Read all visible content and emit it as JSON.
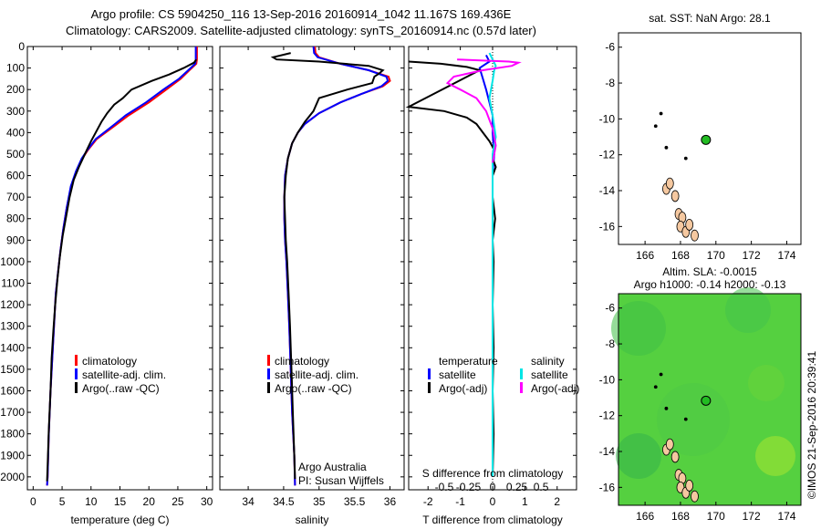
{
  "header": {
    "title_line1": "Argo profile: CS 5904250_116 13-Sep-2016 20160914_1042 11.167S 169.436E",
    "title_line2": "Climatology: CARS2009. Satellite-adjusted climatology: synTS_20160914.nc (0.57d later)"
  },
  "side_stamp": "©IMOS 21-Sep-2016 20:39:41",
  "colors": {
    "climatology": "#ff0000",
    "satellite": "#0000ff",
    "argo": "#000000",
    "sal_satellite": "#00e5e5",
    "sal_argo": "#ff00ff",
    "land_fill": "#f5c8a0",
    "sla_field": "#55d040",
    "marker": "#22bb22"
  },
  "chart_data": [
    {
      "type": "line",
      "id": "temperature",
      "xlabel": "temperature (deg C)",
      "xlim": [
        -1,
        31
      ],
      "xticks": [
        0,
        5,
        10,
        15,
        20,
        25,
        30
      ],
      "ylim": [
        0,
        2060
      ],
      "yticks": [
        0,
        100,
        200,
        300,
        400,
        500,
        600,
        700,
        800,
        900,
        1000,
        1100,
        1200,
        1300,
        1400,
        1500,
        1600,
        1700,
        1800,
        1900,
        2000
      ],
      "legend": [
        "climatology",
        "satellite-adj. clim.",
        "Argo(..raw -QC)"
      ],
      "series": [
        {
          "name": "climatology",
          "points": [
            [
              28.3,
              0
            ],
            [
              28.3,
              60
            ],
            [
              28.2,
              80
            ],
            [
              27.0,
              110
            ],
            [
              25.5,
              150
            ],
            [
              23.0,
              200
            ],
            [
              20.0,
              260
            ],
            [
              16.5,
              320
            ],
            [
              13.5,
              380
            ],
            [
              11.0,
              430
            ],
            [
              9.5,
              480
            ],
            [
              8.5,
              520
            ],
            [
              7.5,
              580
            ],
            [
              6.6,
              650
            ],
            [
              5.8,
              750
            ],
            [
              5.2,
              850
            ],
            [
              4.7,
              950
            ],
            [
              4.3,
              1050
            ],
            [
              3.9,
              1150
            ],
            [
              3.6,
              1300
            ],
            [
              3.3,
              1450
            ],
            [
              3.0,
              1600
            ],
            [
              2.7,
              1800
            ],
            [
              2.5,
              2000
            ],
            [
              2.4,
              2040
            ]
          ]
        },
        {
          "name": "satellite-adj. clim.",
          "points": [
            [
              28.1,
              0
            ],
            [
              28.1,
              60
            ],
            [
              28.0,
              80
            ],
            [
              26.8,
              110
            ],
            [
              25.2,
              150
            ],
            [
              22.5,
              200
            ],
            [
              19.5,
              260
            ],
            [
              16.0,
              320
            ],
            [
              13.2,
              380
            ],
            [
              10.8,
              430
            ],
            [
              9.4,
              480
            ],
            [
              8.4,
              520
            ],
            [
              7.4,
              580
            ],
            [
              6.5,
              650
            ],
            [
              5.8,
              750
            ],
            [
              5.2,
              850
            ],
            [
              4.7,
              950
            ],
            [
              4.3,
              1050
            ],
            [
              3.9,
              1150
            ],
            [
              3.6,
              1300
            ],
            [
              3.3,
              1450
            ],
            [
              3.0,
              1600
            ],
            [
              2.7,
              1800
            ],
            [
              2.5,
              2000
            ],
            [
              2.4,
              2040
            ]
          ]
        },
        {
          "name": "Argo(..raw -QC)",
          "points": [
            [
              28.2,
              60
            ],
            [
              27.8,
              75
            ],
            [
              26.0,
              100
            ],
            [
              23.5,
              130
            ],
            [
              20.5,
              160
            ],
            [
              17.0,
              200
            ],
            [
              15.5,
              240
            ],
            [
              14.0,
              270
            ],
            [
              12.8,
              310
            ],
            [
              11.8,
              350
            ],
            [
              10.8,
              400
            ],
            [
              10.0,
              440
            ],
            [
              9.3,
              480
            ],
            [
              8.6,
              520
            ],
            [
              7.9,
              560
            ],
            [
              7.0,
              620
            ],
            [
              6.3,
              700
            ],
            [
              5.7,
              790
            ],
            [
              5.1,
              880
            ],
            [
              4.6,
              980
            ],
            [
              4.2,
              1080
            ],
            [
              3.8,
              1200
            ],
            [
              3.5,
              1320
            ],
            [
              3.2,
              1450
            ],
            [
              3.0,
              1600
            ],
            [
              2.7,
              1780
            ],
            [
              2.5,
              1950
            ],
            [
              2.4,
              2020
            ]
          ]
        }
      ]
    },
    {
      "type": "line",
      "id": "salinity",
      "xlabel": "salinity",
      "xlim": [
        33.6,
        36.2
      ],
      "xticks": [
        34,
        34.5,
        35,
        35.5,
        36
      ],
      "xticklabels": [
        "34",
        "34.5",
        "35",
        "35.5",
        "36"
      ],
      "ylim": [
        0,
        2060
      ],
      "legend": [
        "climatology",
        "satellite-adj. clim.",
        "Argo(..raw -QC)"
      ],
      "annotation": [
        "Argo Australia",
        "PI: Susan Wijffels"
      ],
      "series": [
        {
          "name": "climatology",
          "points": [
            [
              34.94,
              0
            ],
            [
              34.95,
              30
            ],
            [
              35.0,
              50
            ],
            [
              35.3,
              80
            ],
            [
              35.7,
              110
            ],
            [
              35.98,
              140
            ],
            [
              36.0,
              160
            ],
            [
              35.9,
              185
            ],
            [
              35.6,
              220
            ],
            [
              35.3,
              260
            ],
            [
              35.0,
              310
            ],
            [
              34.8,
              360
            ],
            [
              34.7,
              400
            ],
            [
              34.62,
              450
            ],
            [
              34.56,
              520
            ],
            [
              34.52,
              600
            ],
            [
              34.51,
              700
            ],
            [
              34.51,
              800
            ],
            [
              34.52,
              900
            ],
            [
              34.54,
              1000
            ],
            [
              34.56,
              1150
            ],
            [
              34.58,
              1300
            ],
            [
              34.6,
              1500
            ],
            [
              34.62,
              1700
            ],
            [
              34.65,
              1900
            ],
            [
              34.66,
              2040
            ]
          ]
        },
        {
          "name": "satellite-adj. clim.",
          "points": [
            [
              34.92,
              0
            ],
            [
              34.93,
              30
            ],
            [
              34.98,
              50
            ],
            [
              35.3,
              80
            ],
            [
              35.7,
              110
            ],
            [
              35.95,
              140
            ],
            [
              35.97,
              160
            ],
            [
              35.88,
              185
            ],
            [
              35.6,
              220
            ],
            [
              35.3,
              260
            ],
            [
              35.0,
              310
            ],
            [
              34.8,
              360
            ],
            [
              34.7,
              400
            ],
            [
              34.62,
              450
            ],
            [
              34.56,
              520
            ],
            [
              34.52,
              600
            ],
            [
              34.51,
              700
            ],
            [
              34.51,
              800
            ],
            [
              34.52,
              900
            ],
            [
              34.54,
              1000
            ],
            [
              34.56,
              1150
            ],
            [
              34.58,
              1300
            ],
            [
              34.6,
              1500
            ],
            [
              34.62,
              1700
            ],
            [
              34.65,
              1900
            ],
            [
              34.66,
              2040
            ]
          ]
        },
        {
          "name": "Argo(..raw -QC)",
          "points": [
            [
              34.6,
              30
            ],
            [
              34.35,
              50
            ],
            [
              34.4,
              60
            ],
            [
              35.0,
              70
            ],
            [
              35.7,
              90
            ],
            [
              35.9,
              110
            ],
            [
              35.85,
              125
            ],
            [
              35.78,
              140
            ],
            [
              35.75,
              170
            ],
            [
              35.4,
              200
            ],
            [
              35.0,
              240
            ],
            [
              34.92,
              300
            ],
            [
              34.8,
              350
            ],
            [
              34.7,
              400
            ],
            [
              34.62,
              450
            ],
            [
              34.56,
              520
            ],
            [
              34.53,
              600
            ],
            [
              34.51,
              700
            ],
            [
              34.52,
              800
            ],
            [
              34.53,
              900
            ],
            [
              34.55,
              1000
            ],
            [
              34.57,
              1150
            ],
            [
              34.59,
              1300
            ],
            [
              34.61,
              1500
            ],
            [
              34.63,
              1700
            ],
            [
              34.65,
              1900
            ],
            [
              34.66,
              2010
            ]
          ]
        }
      ]
    },
    {
      "type": "line",
      "id": "difference",
      "xlabel_top": "S difference from climatology",
      "xticklabels_top": [
        "-0.5",
        "-0.25",
        "0",
        "0.25",
        "0.5"
      ],
      "xlabel": "T difference from climatology",
      "xlim": [
        -2.6,
        2.6
      ],
      "xticks": [
        -2,
        -1,
        0,
        1,
        2
      ],
      "ylim": [
        0,
        2060
      ],
      "legend_left_title": "temperature",
      "legend_right_title": "salinity",
      "legend_left": [
        "satellite",
        "Argo(-adj)"
      ],
      "legend_right": [
        "satellite",
        "Argo(-adj)"
      ],
      "series": [
        {
          "name": "temperature satellite",
          "points": [
            [
              -0.2,
              40
            ],
            [
              -0.1,
              70
            ],
            [
              -0.4,
              100
            ],
            [
              -0.3,
              150
            ],
            [
              -0.2,
              200
            ],
            [
              -0.1,
              260
            ],
            [
              0.0,
              320
            ],
            [
              0.0,
              400
            ],
            [
              0.05,
              500
            ],
            [
              0.0,
              600
            ],
            [
              0.0,
              800
            ],
            [
              0.0,
              1000
            ],
            [
              0.0,
              1500
            ],
            [
              0.0,
              2000
            ]
          ]
        },
        {
          "name": "temperature Argo(-adj)",
          "points": [
            [
              -2.6,
              70
            ],
            [
              -1.6,
              80
            ],
            [
              -0.8,
              95
            ],
            [
              -0.4,
              110
            ],
            [
              -2.6,
              280
            ],
            [
              -1.5,
              300
            ],
            [
              -0.8,
              330
            ],
            [
              -0.5,
              360
            ],
            [
              -0.3,
              400
            ],
            [
              -0.1,
              440
            ],
            [
              0.05,
              480
            ],
            [
              0.0,
              520
            ],
            [
              0.1,
              560
            ],
            [
              0.0,
              600
            ],
            [
              0.0,
              700
            ],
            [
              0.08,
              800
            ],
            [
              0.0,
              900
            ],
            [
              0.03,
              1000
            ],
            [
              0.0,
              1200
            ],
            [
              0.03,
              1400
            ],
            [
              0.0,
              1600
            ],
            [
              0.03,
              1800
            ],
            [
              0.0,
              2000
            ]
          ]
        },
        {
          "name": "salinity satellite",
          "points": [
            [
              -0.1,
              30
            ],
            [
              0.0,
              60
            ],
            [
              0.1,
              90
            ],
            [
              0.05,
              110
            ],
            [
              0.0,
              160
            ],
            [
              -0.1,
              240
            ],
            [
              0.0,
              320
            ],
            [
              0.1,
              420
            ],
            [
              0.0,
              500
            ],
            [
              0.0,
              700
            ],
            [
              0.0,
              1000
            ],
            [
              0.0,
              1500
            ],
            [
              0.0,
              2000
            ]
          ]
        },
        {
          "name": "salinity Argo(-adj)",
          "points": [
            [
              -1.1,
              60
            ],
            [
              0.5,
              70
            ],
            [
              0.8,
              75
            ],
            [
              0.6,
              90
            ],
            [
              -0.3,
              110
            ],
            [
              -1.2,
              140
            ],
            [
              -1.4,
              170
            ],
            [
              -1.0,
              200
            ],
            [
              -0.5,
              240
            ],
            [
              -0.2,
              300
            ],
            [
              0.0,
              380
            ],
            [
              0.1,
              460
            ],
            [
              0.0,
              540
            ]
          ]
        }
      ]
    },
    {
      "type": "scatter",
      "id": "sst-map",
      "title": "sat. SST: NaN Argo: 28.1",
      "xlim": [
        164.5,
        174.8
      ],
      "xticks": [
        166,
        168,
        170,
        172,
        174
      ],
      "ylim": [
        -17,
        -5.2
      ],
      "yticks": [
        -6,
        -8,
        -10,
        -12,
        -14,
        -16
      ],
      "marker": {
        "lon": 169.436,
        "lat": -11.167
      }
    },
    {
      "type": "heatmap",
      "id": "sla-map",
      "title_line1": "Altim. SLA: -0.0015",
      "title_line2": "Argo h1000: -0.14 h2000: -0.13",
      "xlim": [
        164.5,
        174.8
      ],
      "xticks": [
        166,
        168,
        170,
        172,
        174
      ],
      "ylim": [
        -17,
        -5.2
      ],
      "yticks": [
        -6,
        -8,
        -10,
        -12,
        -14,
        -16
      ],
      "marker": {
        "lon": 169.436,
        "lat": -11.167
      }
    }
  ]
}
